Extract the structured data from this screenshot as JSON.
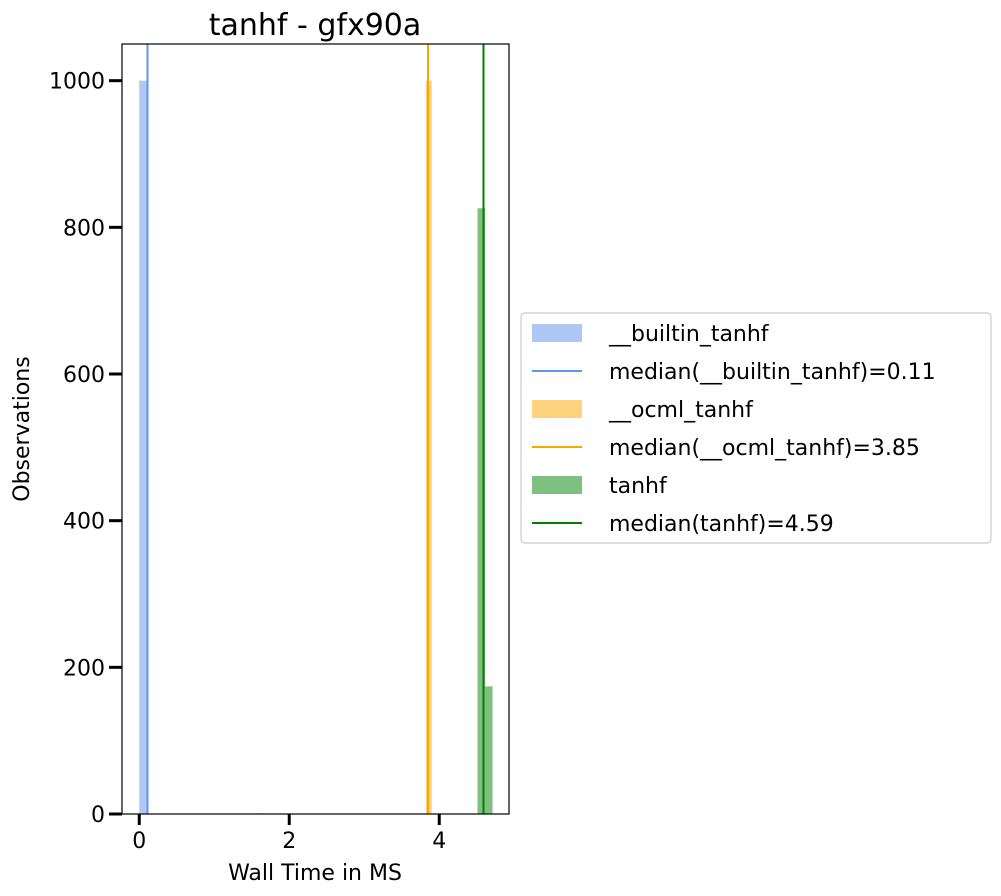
{
  "chart_data": {
    "type": "histogram",
    "title": "tanhf - gfx90a",
    "xlabel": "Wall Time in MS",
    "ylabel": "Observations",
    "xlim": [
      -0.23,
      4.93
    ],
    "ylim": [
      0,
      1050
    ],
    "x_ticks": [
      0,
      2,
      4
    ],
    "x_tick_labels": [
      "0",
      "2",
      "4"
    ],
    "y_ticks": [
      0,
      200,
      400,
      600,
      800,
      1000
    ],
    "y_tick_labels": [
      "0",
      "200",
      "400",
      "600",
      "800",
      "1000"
    ],
    "grid": false,
    "legend_position": "right, outside plot",
    "series": [
      {
        "name": "__builtin_tanhf",
        "color": "#aec7f3",
        "bins": [
          {
            "x0": 0.0,
            "x1": 0.1,
            "count": 1000
          },
          {
            "x0": 1.55,
            "x1": 1.65,
            "count": 1
          }
        ],
        "median_label": "median(__builtin_tanhf)=0.11",
        "median": 0.11,
        "median_color": "#6495ed"
      },
      {
        "name": "__ocml_tanhf",
        "color": "#ffd27f",
        "bins": [
          {
            "x0": 3.82,
            "x1": 3.9,
            "count": 1000
          }
        ],
        "median_label": "median(__ocml_tanhf)=3.85",
        "median": 3.85,
        "median_color": "#ffa500"
      },
      {
        "name": "tanhf",
        "color": "#7fbf7f",
        "bins": [
          {
            "x0": 4.51,
            "x1": 4.61,
            "count": 826
          },
          {
            "x0": 4.61,
            "x1": 4.71,
            "count": 174
          }
        ],
        "median_label": "median(tanhf)=4.59",
        "median": 4.59,
        "median_color": "#008000"
      }
    ]
  }
}
